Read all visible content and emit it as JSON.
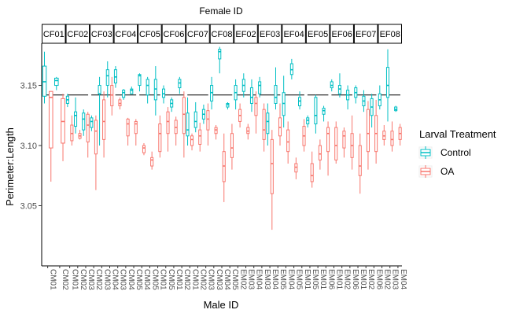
{
  "chart_data": {
    "type": "boxplot",
    "facet_title": "Female ID",
    "xlabel": "Male ID",
    "ylabel": "Perimeter:Length",
    "y_ticks": [
      3.05,
      3.1,
      3.15
    ],
    "y_tick_labels": [
      "3.05",
      "3.10",
      "3.15"
    ],
    "ylim": [
      3.0,
      3.185
    ],
    "reference_line_y": 3.142,
    "legend": {
      "title": "Larval Treatment",
      "position": "right",
      "entries": [
        {
          "name": "Control",
          "color": "#00BFC4"
        },
        {
          "name": "OA",
          "color": "#F8766D"
        }
      ]
    },
    "panels": [
      {
        "female": "CF01",
        "males": [
          "CM01",
          "CM02"
        ],
        "boxes": [
          {
            "male": "CM01",
            "control": [
              3.135,
              3.141,
              3.153,
              3.166,
              3.178
            ],
            "oa": [
              3.07,
              3.098,
              3.14,
              3.145,
              3.145
            ]
          },
          {
            "male": "CM02",
            "control": [
              3.146,
              3.15,
              3.154,
              3.156,
              3.157
            ],
            "oa": [
              3.087,
              3.102,
              3.12,
              3.139,
              3.143
            ]
          }
        ]
      },
      {
        "female": "CF02",
        "males": [
          "CM01",
          "CM02",
          "CM03"
        ],
        "boxes": [
          {
            "male": "CM01",
            "control": [
              3.132,
              3.135,
              3.138,
              3.141,
              3.143
            ],
            "oa": [
              3.1,
              3.104,
              3.11,
              3.117,
              3.125
            ]
          },
          {
            "male": "CM02",
            "control": [
              3.11,
              3.116,
              3.125,
              3.128,
              3.14
            ],
            "oa": [
              3.105,
              3.106,
              3.108,
              3.11,
              3.113
            ]
          },
          {
            "male": "CM03",
            "control": [
              3.108,
              3.113,
              3.122,
              3.127,
              3.13
            ],
            "oa": [
              3.09,
              3.103,
              3.117,
              3.126,
              3.128
            ]
          }
        ]
      },
      {
        "female": "CF03",
        "males": [
          "CM02",
          "CM03",
          "CM04"
        ],
        "boxes": [
          {
            "male": "CM02",
            "control": [
              3.112,
              3.115,
              3.12,
              3.123,
              3.125
            ],
            "oa": [
              3.063,
              3.093,
              3.112,
              3.121,
              3.125
            ]
          },
          {
            "male": "CM03",
            "control": [
              3.1,
              3.143,
              3.143,
              3.15,
              3.157
            ],
            "oa": [
              3.09,
              3.105,
              3.12,
              3.138,
              3.145
            ]
          },
          {
            "male": "CM04",
            "control": [
              3.14,
              3.15,
              3.158,
              3.163,
              3.17
            ],
            "oa": [
              3.125,
              3.133,
              3.142,
              3.15,
              3.157
            ]
          }
        ]
      },
      {
        "female": "CF04",
        "males": [
          "CM03",
          "CM04",
          "CM05"
        ],
        "boxes": [
          {
            "male": "CM03",
            "control": [
              3.148,
              3.152,
              3.157,
              3.163,
              3.166
            ],
            "oa": [
              3.13,
              3.133,
              3.135,
              3.138,
              3.14
            ]
          },
          {
            "male": "CM04",
            "control": [
              3.138,
              3.14,
              3.144,
              3.146,
              3.147
            ],
            "oa": [
              3.1,
              3.108,
              3.118,
              3.122,
              3.123
            ]
          },
          {
            "male": "CM05",
            "control": [
              3.143,
              3.143,
              3.146,
              3.147,
              3.149
            ],
            "oa": [
              3.1,
              3.11,
              3.118,
              3.12,
              3.122
            ]
          }
        ]
      },
      {
        "female": "CF05",
        "males": [
          "CM04",
          "CM05",
          "CM01"
        ],
        "boxes": [
          {
            "male": "CM04",
            "control": [
              3.145,
              3.15,
              3.158,
              3.159,
              3.16
            ],
            "oa": [
              3.092,
              3.094,
              3.098,
              3.1,
              3.102
            ]
          },
          {
            "male": "CM05",
            "control": [
              3.135,
              3.142,
              3.15,
              3.155,
              3.157
            ],
            "oa": [
              3.08,
              3.083,
              3.088,
              3.09,
              3.095
            ]
          },
          {
            "male": "CM01",
            "control": [
              3.125,
              3.138,
              3.147,
              3.155,
              3.166
            ],
            "oa": [
              3.09,
              3.095,
              3.11,
              3.118,
              3.125
            ]
          }
        ]
      },
      {
        "female": "CF06",
        "males": [
          "CM05",
          "CM01",
          "CM02"
        ],
        "boxes": [
          {
            "male": "CM05",
            "control": [
              3.135,
              3.14,
              3.143,
              3.147,
              3.15
            ],
            "oa": [
              3.095,
              3.11,
              3.12,
              3.128,
              3.132
            ]
          },
          {
            "male": "CM01",
            "control": [
              3.128,
              3.132,
              3.135,
              3.138,
              3.14
            ],
            "oa": [
              3.1,
              3.11,
              3.115,
              3.121,
              3.124
            ]
          },
          {
            "male": "CM02",
            "control": [
              3.143,
              3.148,
              3.152,
              3.155,
              3.157
            ],
            "oa": [
              3.09,
              3.11,
              3.126,
              3.14,
              3.145
            ]
          }
        ]
      },
      {
        "female": "CF07",
        "males": [
          "CM01",
          "CM02",
          "CM03"
        ],
        "boxes": [
          {
            "male": "CM01",
            "control": [
              3.1,
              3.108,
              3.113,
              3.127,
              3.14
            ],
            "oa": [
              3.096,
              3.1,
              3.105,
              3.108,
              3.11
            ]
          },
          {
            "male": "CM02",
            "control": [
              3.111,
              3.115,
              3.12,
              3.128,
              3.136
            ],
            "oa": [
              3.095,
              3.101,
              3.108,
              3.113,
              3.119
            ]
          },
          {
            "male": "CM03",
            "control": [
              3.118,
              3.122,
              3.126,
              3.13,
              3.134
            ],
            "oa": [
              3.1,
              3.113,
              3.122,
              3.129,
              3.135
            ]
          }
        ]
      },
      {
        "female": "CF08",
        "males": [
          "CM03",
          "CM04",
          "CM05"
        ],
        "boxes": [
          {
            "male": "CM03",
            "control": [
              3.13,
              3.137,
              3.144,
              3.15,
              3.157
            ],
            "oa": [
              3.105,
              3.11,
              3.113,
              3.115,
              3.117
            ]
          },
          {
            "male": "CM04",
            "control": [
              3.16,
              3.172,
              3.178,
              3.18,
              3.182
            ],
            "oa": [
              3.053,
              3.07,
              3.083,
              3.095,
              3.11
            ]
          },
          {
            "male": "CM05",
            "control": [
              3.13,
              3.132,
              3.134,
              3.135,
              3.136
            ],
            "oa": [
              3.08,
              3.09,
              3.098,
              3.11,
              3.118
            ]
          }
        ]
      },
      {
        "female": "EF02",
        "males": [
          "EM02",
          "EM03",
          "EM04"
        ],
        "boxes": [
          {
            "male": "EM02",
            "control": [
              3.13,
              3.138,
              3.144,
              3.15,
              3.155
            ],
            "oa": [
              3.115,
              3.12,
              3.125,
              3.13,
              3.135
            ]
          },
          {
            "male": "EM03",
            "control": [
              3.14,
              3.145,
              3.15,
              3.155,
              3.16
            ],
            "oa": [
              3.105,
              3.11,
              3.112,
              3.115,
              3.118
            ]
          },
          {
            "male": "EM04",
            "control": [
              3.128,
              3.135,
              3.14,
              3.148,
              3.155
            ],
            "oa": [
              3.11,
              3.125,
              3.135,
              3.14,
              3.145
            ]
          }
        ]
      },
      {
        "female": "EF03",
        "males": [
          "EM03",
          "EM04",
          "EM05"
        ],
        "boxes": [
          {
            "male": "EM03",
            "control": [
              3.14,
              3.143,
              3.15,
              3.153,
              3.157
            ],
            "oa": [
              3.095,
              3.105,
              3.113,
              3.13,
              3.135
            ]
          },
          {
            "male": "EM04",
            "control": [
              3.1,
              3.11,
              3.12,
              3.127,
              3.135
            ],
            "oa": [
              3.03,
              3.06,
              3.085,
              3.105,
              3.113
            ]
          },
          {
            "male": "EM05",
            "control": [
              3.13,
              3.135,
              3.14,
              3.15,
              3.165
            ],
            "oa": [
              3.1,
              3.108,
              3.115,
              3.123,
              3.135
            ]
          }
        ]
      },
      {
        "female": "EF04",
        "males": [
          "EM04",
          "EM05",
          "EM01"
        ],
        "boxes": [
          {
            "male": "EM04",
            "control": [
              3.115,
              3.125,
              3.135,
              3.144,
              3.158
            ],
            "oa": [
              3.085,
              3.095,
              3.103,
              3.113,
              3.12
            ]
          },
          {
            "male": "EM05",
            "control": [
              3.155,
              3.159,
              3.163,
              3.168,
              3.172
            ],
            "oa": [
              3.072,
              3.078,
              3.082,
              3.085,
              3.09
            ]
          },
          {
            "male": "EM01",
            "control": [
              3.13,
              3.133,
              3.137,
              3.14,
              3.145
            ],
            "oa": [
              3.095,
              3.1,
              3.108,
              3.116,
              3.122
            ]
          }
        ]
      },
      {
        "female": "EF05",
        "males": [
          "EM05",
          "EM01",
          "EM06"
        ],
        "boxes": [
          {
            "male": "EM05",
            "control": [
              3.115,
              3.118,
              3.121,
              3.123,
              3.125
            ],
            "oa": [
              3.065,
              3.07,
              3.075,
              3.085,
              3.095
            ]
          },
          {
            "male": "EM01",
            "control": [
              3.11,
              3.118,
              3.125,
              3.14,
              3.142
            ],
            "oa": [
              3.08,
              3.088,
              3.093,
              3.1,
              3.105
            ]
          },
          {
            "male": "EM06",
            "control": [
              3.12,
              3.126,
              3.129,
              3.131,
              3.133
            ],
            "oa": [
              3.075,
              3.095,
              3.11,
              3.115,
              3.12
            ]
          }
        ]
      },
      {
        "female": "EF06",
        "males": [
          "EM01",
          "EM02",
          "EM06"
        ],
        "boxes": [
          {
            "male": "EM01",
            "control": [
              3.145,
              3.148,
              3.15,
              3.153,
              3.155
            ],
            "oa": [
              3.085,
              3.088,
              3.1,
              3.115,
              3.12
            ]
          },
          {
            "male": "EM02",
            "control": [
              3.14,
              3.143,
              3.147,
              3.15,
              3.16
            ],
            "oa": [
              3.09,
              3.098,
              3.108,
              3.112,
              3.115
            ]
          },
          {
            "male": "EM06",
            "control": [
              3.13,
              3.138,
              3.142,
              3.146,
              3.15
            ],
            "oa": [
              3.08,
              3.09,
              3.1,
              3.11,
              3.125
            ]
          }
        ]
      },
      {
        "female": "EF07",
        "males": [
          "EM01",
          "EM02",
          "EM06"
        ],
        "boxes": [
          {
            "male": "EM01",
            "control": [
              3.135,
              3.14,
              3.144,
              3.148,
              3.15
            ],
            "oa": [
              3.06,
              3.075,
              3.083,
              3.1,
              3.11
            ]
          },
          {
            "male": "EM02",
            "control": [
              3.128,
              3.133,
              3.137,
              3.141,
              3.146
            ],
            "oa": [
              3.08,
              3.095,
              3.11,
              3.13,
              3.137
            ]
          },
          {
            "male": "EM06",
            "control": [
              3.115,
              3.125,
              3.132,
              3.139,
              3.143
            ],
            "oa": [
              3.085,
              3.095,
              3.11,
              3.125,
              3.138
            ]
          }
        ]
      },
      {
        "female": "EF08",
        "males": [
          "EM02",
          "EM03",
          "EM04"
        ],
        "boxes": [
          {
            "male": "EM02",
            "control": [
              3.13,
              3.133,
              3.138,
              3.143,
              3.15
            ],
            "oa": [
              3.1,
              3.105,
              3.108,
              3.112,
              3.117
            ]
          },
          {
            "male": "EM03",
            "control": [
              3.12,
              3.14,
              3.15,
              3.165,
              3.18
            ],
            "oa": [
              3.095,
              3.1,
              3.105,
              3.112,
              3.12
            ]
          },
          {
            "male": "EM04",
            "control": [
              3.128,
              3.129,
              3.13,
              3.132,
              3.133
            ],
            "oa": [
              3.1,
              3.105,
              3.11,
              3.115,
              3.118
            ]
          }
        ]
      }
    ]
  }
}
